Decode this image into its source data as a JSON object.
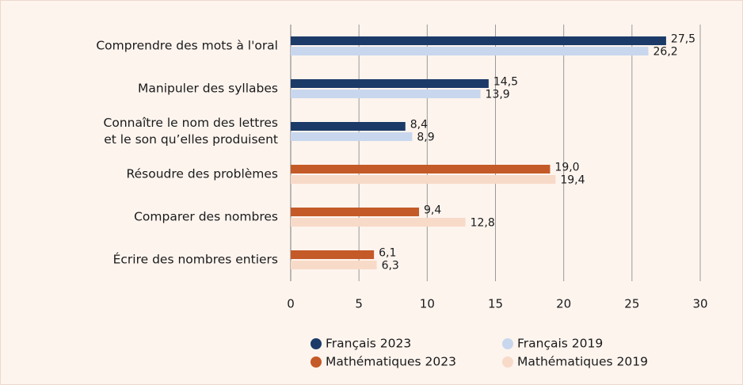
{
  "chart_data": {
    "type": "hbar",
    "categories": [
      "Comprendre des mots à l'oral",
      "Manipuler des syllabes",
      "Connaître le nom des lettres\net le son qu’elles produisent",
      "Résoudre des problèmes",
      "Comparer des nombres",
      "Écrire des nombres entiers"
    ],
    "series": [
      {
        "name": "Français 2023",
        "color": "#1c3a68",
        "values": [
          27.5,
          14.5,
          8.4,
          null,
          null,
          null
        ],
        "value_labels": [
          "27,5",
          "14,5",
          "8,4",
          null,
          null,
          null
        ]
      },
      {
        "name": "Français 2019",
        "color": "#c8d7ed",
        "values": [
          26.2,
          13.9,
          8.9,
          null,
          null,
          null
        ],
        "value_labels": [
          "26,2",
          "13,9",
          "8,9",
          null,
          null,
          null
        ]
      },
      {
        "name": "Mathématiques 2023",
        "color": "#c45a27",
        "values": [
          null,
          null,
          null,
          19.0,
          9.4,
          6.1
        ],
        "value_labels": [
          null,
          null,
          null,
          "19,0",
          "9,4",
          "6,1"
        ]
      },
      {
        "name": "Mathématiques 2019",
        "color": "#f8dac8",
        "values": [
          null,
          null,
          null,
          19.4,
          12.8,
          6.3
        ],
        "value_labels": [
          null,
          null,
          null,
          "19,4",
          "12,8",
          "6,3"
        ]
      }
    ],
    "xlim": [
      0,
      30
    ],
    "xticks": [
      0,
      5,
      10,
      15,
      20,
      25,
      30
    ],
    "grid": true,
    "legend": "bottom"
  }
}
